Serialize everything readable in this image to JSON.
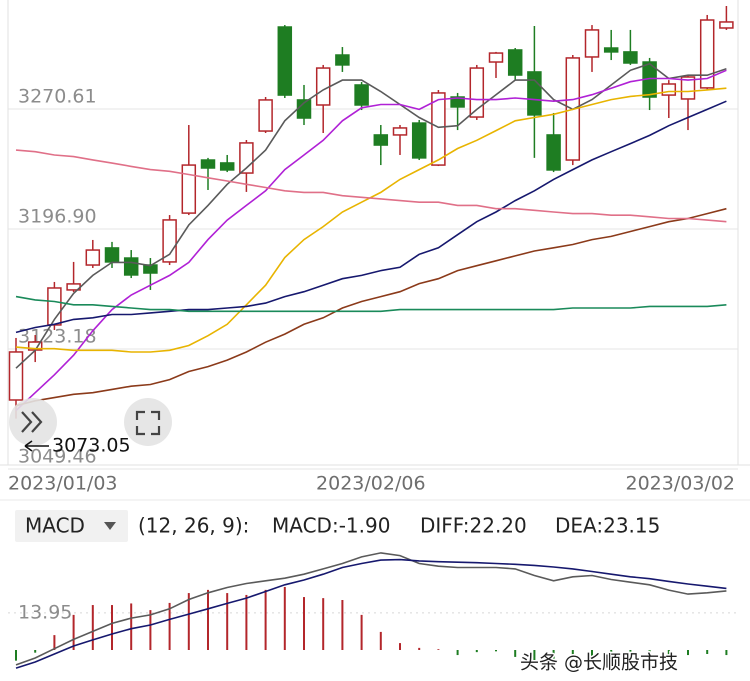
{
  "chart_data": [
    {
      "type": "candlestick",
      "categories": [
        "2023/01/03",
        null,
        null,
        null,
        null,
        null,
        null,
        null,
        null,
        null,
        null,
        null,
        null,
        null,
        null,
        null,
        null,
        null,
        null,
        "2023/02/06",
        null,
        null,
        null,
        null,
        null,
        null,
        null,
        null,
        null,
        null,
        null,
        null,
        null,
        null,
        null,
        null,
        null,
        "2023/03/02"
      ],
      "open": [
        3084.5,
        3115.2,
        3130.6,
        3152.1,
        3167.4,
        3177.9,
        3171.7,
        3167.4,
        3169.3,
        3199.3,
        3231.9,
        3230.1,
        3223.9,
        3249.7,
        3313.6,
        3268.8,
        3265.7,
        3296.4,
        3278.0,
        3247.3,
        3247.3,
        3254.6,
        3228.8,
        3270.6,
        3258.3,
        3292.1,
        3299.5,
        3286.0,
        3247.3,
        3231.9,
        3295.2,
        3300.7,
        3298.3,
        3292.1,
        3271.8,
        3269.4,
        3276.2,
        3313.0
      ],
      "high": [
        3122.6,
        3124.4,
        3157.0,
        3169.3,
        3182.8,
        3181.6,
        3176.6,
        3171.7,
        3198.1,
        3253.4,
        3233.2,
        3235.0,
        3244.2,
        3270.6,
        3314.8,
        3278.0,
        3290.3,
        3301.3,
        3279.8,
        3253.4,
        3253.4,
        3256.5,
        3274.9,
        3273.1,
        3290.3,
        3298.3,
        3300.7,
        3314.2,
        3260.8,
        3296.4,
        3314.8,
        3311.8,
        3311.8,
        3294.6,
        3281.0,
        3284.1,
        3321.0,
        3326.5
      ],
      "low": [
        3073.05,
        3107.8,
        3127.5,
        3150.8,
        3165.6,
        3165.6,
        3159.4,
        3152.1,
        3167.4,
        3198.1,
        3213.5,
        3224.5,
        3212.3,
        3248.5,
        3270.0,
        3253.4,
        3248.5,
        3286.0,
        3262.6,
        3228.8,
        3235.0,
        3231.9,
        3228.2,
        3250.3,
        3256.5,
        3282.3,
        3281.0,
        3233.2,
        3224.5,
        3228.8,
        3286.0,
        3293.3,
        3290.3,
        3262.6,
        3257.7,
        3250.3,
        3274.9,
        3311.8
      ],
      "close": [
        3114.0,
        3120.1,
        3153.3,
        3155.8,
        3176.6,
        3169.3,
        3161.3,
        3162.5,
        3195.1,
        3228.8,
        3227.0,
        3225.8,
        3242.4,
        3268.8,
        3271.8,
        3257.7,
        3288.4,
        3290.3,
        3265.7,
        3241.1,
        3251.6,
        3233.2,
        3273.1,
        3264.5,
        3288.4,
        3297.6,
        3284.1,
        3259.6,
        3225.8,
        3294.6,
        3311.8,
        3298.3,
        3291.5,
        3270.6,
        3278.6,
        3282.9,
        3317.9,
        3316.7
      ],
      "up_color": "#b3262b",
      "down_color": "#1e7d22",
      "series": [
        {
          "color": "#5a5a5a",
          "values": [
            3104,
            3115,
            3134,
            3150,
            3161,
            3169,
            3169,
            3167,
            3174,
            3192,
            3204,
            3217,
            3227,
            3238,
            3256,
            3267,
            3275,
            3281,
            3281,
            3274,
            3266,
            3258,
            3252,
            3253,
            3263,
            3272,
            3281,
            3281,
            3269,
            3263,
            3269,
            3278,
            3287,
            3291,
            3282,
            3284,
            3284,
            3288
          ]
        },
        {
          "color": "#b021d6",
          "values": [
            3078,
            3089,
            3100,
            3112,
            3127,
            3140,
            3149,
            3155,
            3161,
            3169,
            3183,
            3195,
            3204,
            3213,
            3226,
            3235,
            3244,
            3256,
            3264,
            3266,
            3266,
            3263,
            3269,
            3270,
            3269,
            3269,
            3270,
            3269,
            3268,
            3269,
            3272,
            3276,
            3280,
            3282,
            3282,
            3281,
            3282,
            3287
          ]
        },
        {
          "color": "#e8b400",
          "values": [
            3117,
            3116,
            3116,
            3115,
            3115,
            3115,
            3114,
            3114,
            3115,
            3118,
            3124,
            3131,
            3143,
            3155,
            3172,
            3183,
            3191,
            3200,
            3206,
            3212,
            3220,
            3226,
            3232,
            3239,
            3244,
            3250,
            3256,
            3258,
            3260,
            3263,
            3266,
            3269,
            3271,
            3272,
            3274,
            3274,
            3275,
            3276
          ]
        },
        {
          "color": "#16186e",
          "values": [
            3126,
            3129,
            3131,
            3134,
            3135,
            3137,
            3137,
            3138,
            3139,
            3140,
            3140,
            3141,
            3142,
            3144,
            3148,
            3151,
            3155,
            3159,
            3161,
            3164,
            3166,
            3174,
            3178,
            3186,
            3194,
            3200,
            3207,
            3213,
            3220,
            3226,
            3232,
            3237,
            3242,
            3247,
            3253,
            3258,
            3263,
            3268
          ]
        },
        {
          "color": "#8b3a1a",
          "values": [
            3081,
            3084,
            3086,
            3088,
            3089,
            3091,
            3093,
            3094,
            3097,
            3102,
            3105,
            3109,
            3114,
            3120,
            3125,
            3131,
            3135,
            3141,
            3145,
            3148,
            3151,
            3156,
            3159,
            3164,
            3167,
            3170,
            3173,
            3176,
            3178,
            3180,
            3183,
            3185,
            3188,
            3191,
            3194,
            3196,
            3199,
            3202
          ]
        },
        {
          "color": "#1a8a5a",
          "values": [
            3148,
            3146,
            3145,
            3143,
            3143,
            3142,
            3141,
            3140,
            3140,
            3139,
            3139,
            3139,
            3139,
            3139,
            3139,
            3139,
            3139,
            3139,
            3139,
            3139,
            3140,
            3140,
            3140,
            3140,
            3140,
            3140,
            3140,
            3140,
            3140,
            3141,
            3141,
            3141,
            3141,
            3142,
            3142,
            3142,
            3142,
            3143
          ]
        },
        {
          "color": "#e07088",
          "values": [
            3238,
            3237,
            3235,
            3234,
            3232,
            3230,
            3228,
            3226,
            3225,
            3223,
            3221,
            3219,
            3217,
            3215,
            3213,
            3212,
            3212,
            3210,
            3209,
            3208,
            3207,
            3206,
            3206,
            3204,
            3204,
            3202,
            3202,
            3201,
            3200,
            3199,
            3199,
            3198,
            3198,
            3197,
            3196,
            3196,
            3195,
            3194
          ]
        }
      ],
      "ylim": [
        3044.57,
        3330.19
      ],
      "yticks": [
        3049.46,
        3123.18,
        {
          "value": 3196.9,
          "label": "3196.90"
        },
        3270.61
      ],
      "grid": true,
      "low_label": "3073.05"
    },
    {
      "type": "macd",
      "title": "MACD",
      "params": "(12, 26, 9):",
      "values_label": "MACD:-1.90",
      "values": [
        -4,
        -1,
        5.6,
        13.2,
        16.9,
        16.9,
        17.5,
        15,
        17.7,
        21.4,
        22.6,
        21.4,
        20.7,
        22.6,
        23.7,
        19.9,
        19.5,
        18.8,
        13.2,
        6.8,
        2.6,
        0.8,
        0.3,
        -1.9,
        -0.8,
        -0.5,
        -2.6,
        -3.8,
        -4.1,
        -2.6,
        -2.3,
        -2.3,
        -2.6,
        -3.8,
        -2.3,
        -1.9,
        -1.5,
        -1.9
      ],
      "up_color": "#b3262b",
      "down_color": "#1e7d22",
      "series": [
        {
          "name": "DIFF:22.20",
          "color": "#5a5a5a",
          "values": [
            -5.6,
            -3,
            0.5,
            4,
            7,
            10,
            12,
            13.2,
            15.5,
            19,
            21.5,
            23.5,
            25,
            26,
            27,
            28.5,
            30.5,
            32.5,
            35,
            36.5,
            35.5,
            32.5,
            31.5,
            31,
            31,
            31,
            30.5,
            28,
            26,
            27.5,
            28,
            26.5,
            25.5,
            24.5,
            22.5,
            21,
            21.5,
            22.2
          ]
        },
        {
          "name": "DEA:23.15",
          "color": "#16186e",
          "values": [
            -6.8,
            -4.5,
            -1.5,
            1.5,
            3.8,
            6,
            8,
            9.4,
            11.5,
            13.5,
            15.5,
            17.5,
            19.5,
            22,
            24.5,
            26.3,
            28.5,
            31,
            32.5,
            33.8,
            34,
            33.5,
            33.2,
            33,
            32.8,
            32.5,
            32.2,
            31.8,
            31.2,
            30.5,
            29.5,
            28.5,
            27.5,
            26.8,
            25.8,
            24.8,
            24,
            23.15
          ]
        }
      ],
      "ylim": [
        -11.65,
        39.47
      ],
      "yticks": [
        13.95
      ],
      "grid": true
    }
  ],
  "watermark": "头条 @长顺股市技"
}
